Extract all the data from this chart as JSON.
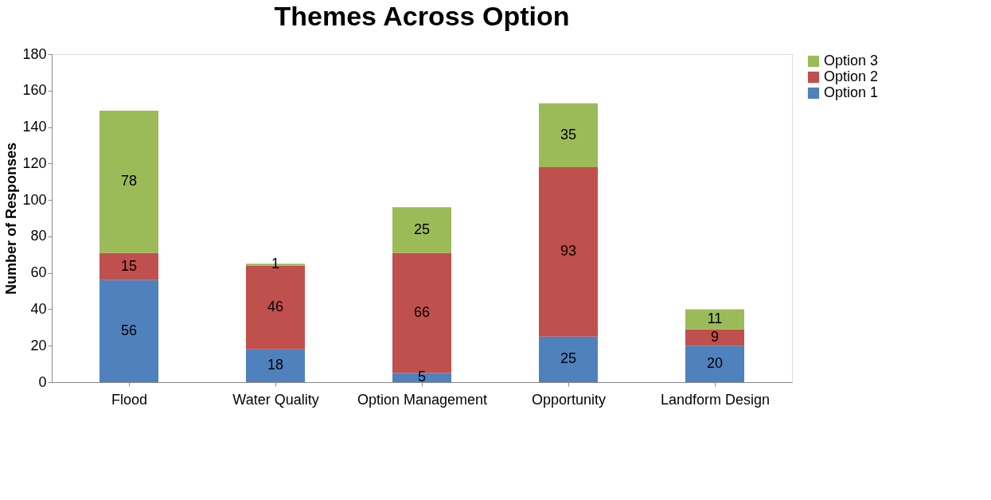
{
  "chart_data": {
    "type": "bar",
    "title": "Themes Across Option",
    "ylabel": "Number of Responses",
    "categories": [
      "Flood",
      "Water Quality",
      "Option Management",
      "Opportunity",
      "Landform Design"
    ],
    "series": [
      {
        "name": "Option 1",
        "color": "#4f81bd",
        "values": [
          56,
          18,
          5,
          25,
          20
        ]
      },
      {
        "name": "Option 2",
        "color": "#c0504d",
        "values": [
          15,
          46,
          66,
          93,
          9
        ]
      },
      {
        "name": "Option 3",
        "color": "#9bbb59",
        "values": [
          78,
          1,
          25,
          35,
          11
        ]
      }
    ],
    "stacked": true,
    "ylim": [
      0,
      180
    ],
    "yticks": [
      0,
      20,
      40,
      60,
      80,
      100,
      120,
      140,
      160,
      180
    ],
    "data_labels": true,
    "legend": "right",
    "grid": false
  }
}
